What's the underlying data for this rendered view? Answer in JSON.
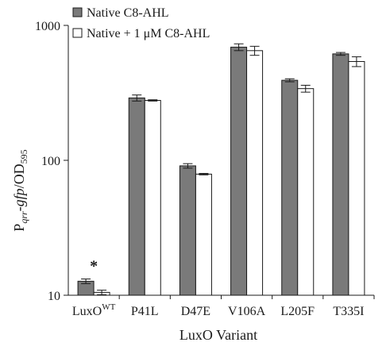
{
  "chart_data": {
    "type": "bar",
    "title": "",
    "categories": [
      {
        "main": "LuxO",
        "sup": "WT"
      },
      {
        "main": "P41L",
        "sup": ""
      },
      {
        "main": "D47E",
        "sup": ""
      },
      {
        "main": "V106A",
        "sup": ""
      },
      {
        "main": "L205F",
        "sup": ""
      },
      {
        "main": "T335I",
        "sup": ""
      }
    ],
    "series": [
      {
        "name": "Native C8-AHL",
        "color": "#7a7a7a",
        "values": [
          12.7,
          290,
          91,
          690,
          392,
          615
        ],
        "errors": [
          0.5,
          15,
          3.5,
          40,
          10,
          15
        ]
      },
      {
        "name": "Native + 1 μM C8-AHL",
        "color": "#ffffff",
        "values": [
          10.5,
          278,
          79,
          650,
          340,
          540
        ],
        "errors": [
          0.4,
          3,
          1,
          50,
          20,
          45
        ]
      }
    ],
    "y_scale": "log",
    "ylim": [
      10,
      1000
    ],
    "yticks": [
      "10",
      "100",
      "1000"
    ],
    "ylabel": {
      "p": "P",
      "sub1": "qrr",
      "dash": "-",
      "gfp": "gfp",
      "rest": "/OD",
      "sub2": "595"
    },
    "xlabel": "LuxO Variant",
    "annotations": [
      {
        "text": "*",
        "category_index": 0
      }
    ],
    "legend_position": "top-left",
    "grid": false
  }
}
